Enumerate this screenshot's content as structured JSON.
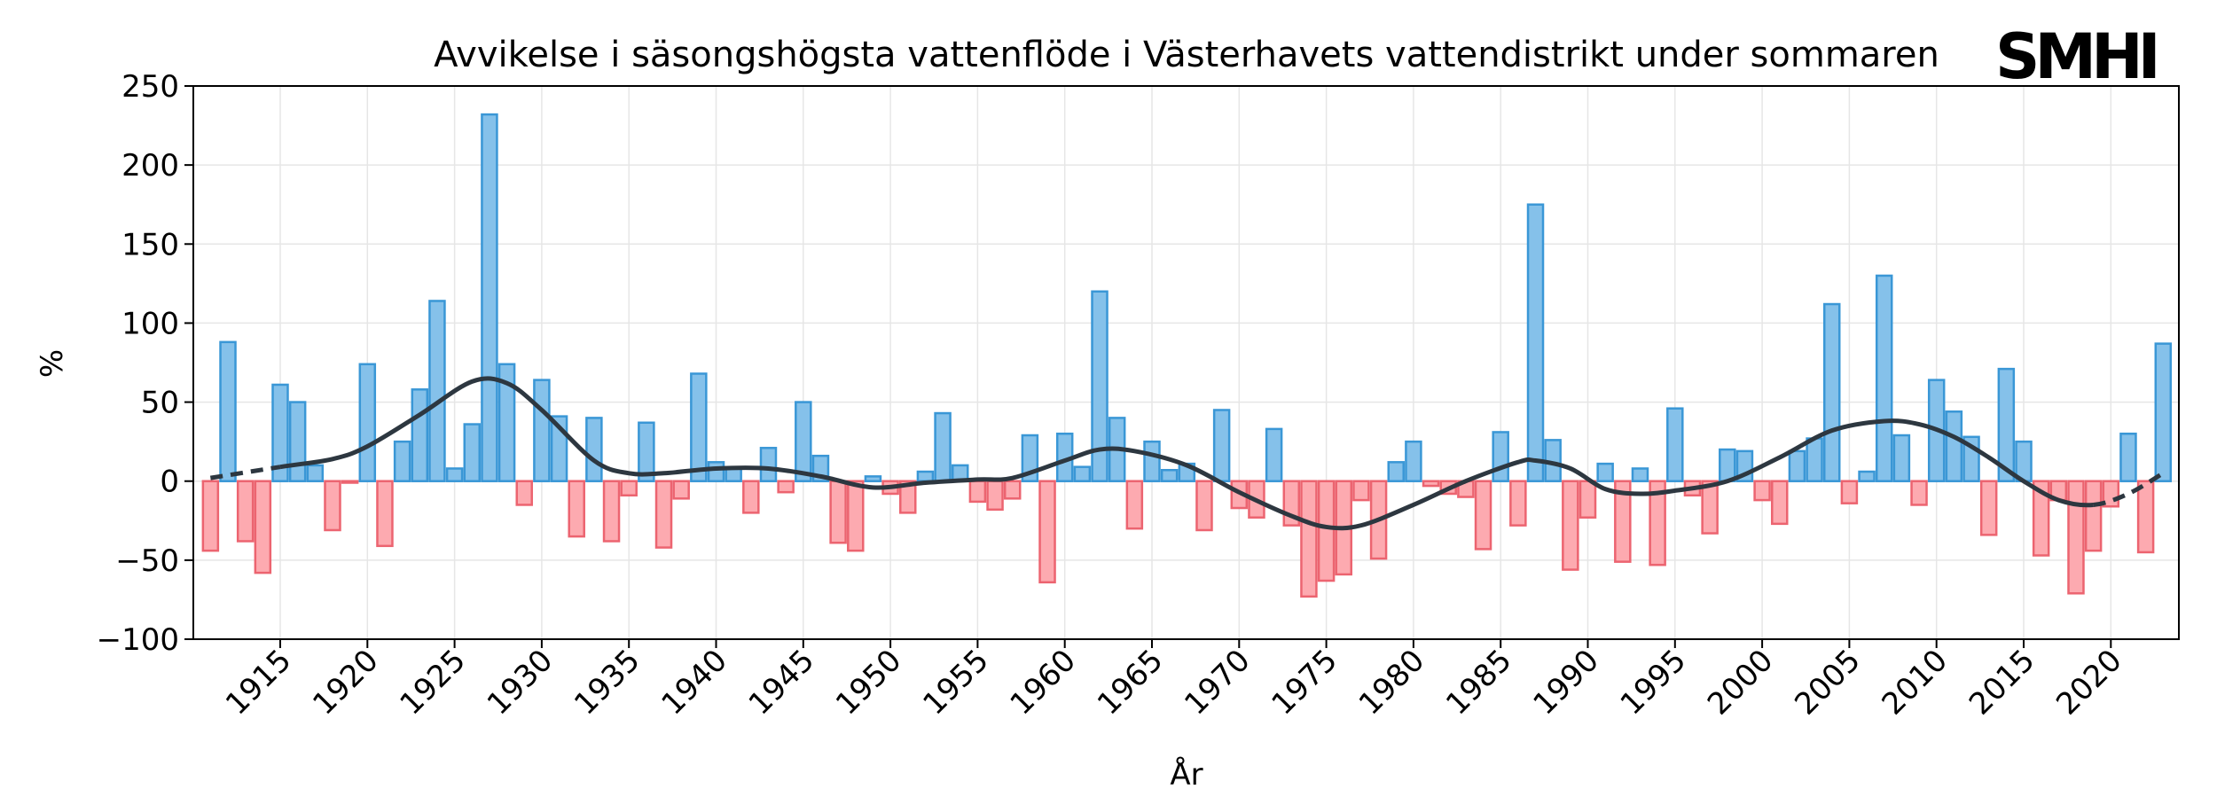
{
  "chart_data": {
    "type": "bar",
    "title": "Avvikelse i säsongshögsta vattenflöde i Västerhavets vattendistrikt under sommaren",
    "xlabel": "År",
    "ylabel": "%",
    "logo": "SMHI",
    "ylim": [
      -100,
      250
    ],
    "yticks": [
      -100,
      -50,
      0,
      50,
      100,
      150,
      200,
      250
    ],
    "xticks": [
      1915,
      1920,
      1925,
      1930,
      1935,
      1940,
      1945,
      1950,
      1955,
      1960,
      1965,
      1970,
      1975,
      1980,
      1985,
      1990,
      1995,
      2000,
      2005,
      2010,
      2015,
      2020
    ],
    "xlim": [
      1910,
      2024
    ],
    "grid": true,
    "colors": {
      "positive_fill": "#85c1ea",
      "positive_edge": "#3a97d6",
      "negative_fill": "#fdaab0",
      "negative_edge": "#ec6470",
      "trend": "#2d3740"
    },
    "first_year": 1911,
    "values": [
      -44,
      88,
      -38,
      -58,
      61,
      50,
      10,
      -31,
      -1,
      74,
      -41,
      25,
      58,
      114,
      8,
      36,
      232,
      74,
      -15,
      64,
      41,
      -35,
      40,
      -38,
      -9,
      37,
      -42,
      -11,
      68,
      12,
      8,
      -20,
      21,
      -7,
      50,
      16,
      -39,
      -44,
      3,
      -8,
      -20,
      6,
      43,
      10,
      -13,
      -18,
      -11,
      29,
      -64,
      30,
      9,
      120,
      40,
      -30,
      25,
      7,
      11,
      -31,
      45,
      -17,
      -23,
      33,
      -28,
      -73,
      -63,
      -59,
      -12,
      -49,
      12,
      25,
      -3,
      -8,
      -10,
      -43,
      31,
      -28,
      175,
      26,
      -56,
      -23,
      11,
      -51,
      8,
      -53,
      46,
      -9,
      -33,
      20,
      19,
      -12,
      -27,
      19,
      27,
      112,
      -14,
      6,
      130,
      29,
      -15,
      64,
      44,
      28,
      -34,
      71,
      25,
      -47,
      -12,
      -71,
      -44,
      -16,
      30,
      -45,
      87
    ],
    "trend": {
      "name": "smoothed",
      "x": [
        1911,
        1915,
        1918,
        1920,
        1923,
        1926,
        1928,
        1930,
        1933,
        1935,
        1937,
        1940,
        1943,
        1946,
        1949,
        1952,
        1955,
        1957,
        1960,
        1962,
        1964,
        1967,
        1970,
        1973,
        1975,
        1977,
        1980,
        1983,
        1986,
        1987,
        1989,
        1991,
        1993,
        1995,
        1998,
        2001,
        2004,
        2007,
        2009,
        2011,
        2013,
        2015,
        2017,
        2019,
        2021,
        2023
      ],
      "y": [
        2,
        9,
        14,
        22,
        42,
        63,
        62,
        45,
        13,
        5,
        5,
        8,
        8,
        3,
        -4,
        -1,
        1,
        2,
        13,
        20,
        19,
        10,
        -7,
        -22,
        -29,
        -28,
        -15,
        0,
        12,
        13,
        8,
        -5,
        -8,
        -6,
        0,
        15,
        32,
        38,
        36,
        28,
        15,
        0,
        -12,
        -15,
        -8,
        5
      ],
      "dashed_before": 1915,
      "dashed_after": 2020
    }
  }
}
